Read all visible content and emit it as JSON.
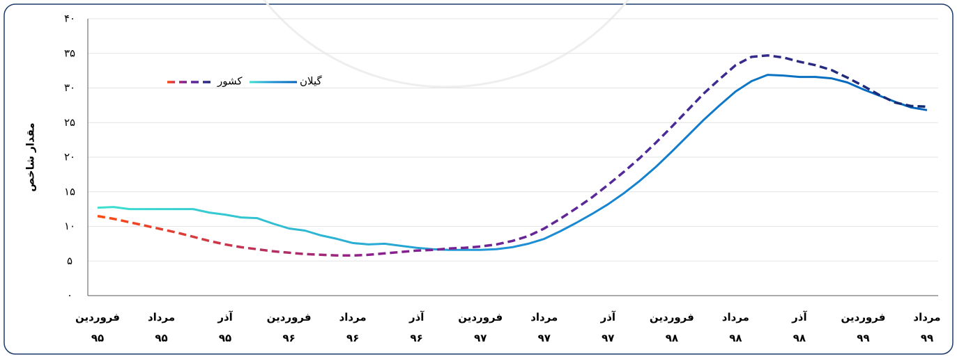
{
  "chart_data": {
    "type": "line",
    "y_label": "مقدار شاخص",
    "categories": [
      [
        "فروردین",
        "۹۵"
      ],
      null,
      null,
      null,
      [
        "مرداد",
        "۹۵"
      ],
      null,
      null,
      null,
      [
        "آذر",
        "۹۵"
      ],
      null,
      null,
      null,
      [
        "فروردین",
        "۹۶"
      ],
      null,
      null,
      null,
      [
        "مرداد",
        "۹۶"
      ],
      null,
      null,
      null,
      [
        "آذر",
        "۹۶"
      ],
      null,
      null,
      null,
      [
        "فروردین",
        "۹۷"
      ],
      null,
      null,
      null,
      [
        "مرداد",
        "۹۷"
      ],
      null,
      null,
      null,
      [
        "آذر",
        "۹۷"
      ],
      null,
      null,
      null,
      [
        "فروردین",
        "۹۸"
      ],
      null,
      null,
      null,
      [
        "مرداد",
        "۹۸"
      ],
      null,
      null,
      null,
      [
        "آذر",
        "۹۸"
      ],
      null,
      null,
      null,
      [
        "فروردین",
        "۹۹"
      ],
      null,
      null,
      null,
      [
        "مرداد",
        "۹۹"
      ]
    ],
    "series": [
      {
        "name": "گیلان",
        "color": [
          "#3ee0cf",
          "#1e90d6",
          "#0062b8"
        ],
        "dash": false,
        "values": [
          12.7,
          12.8,
          12.5,
          12.5,
          12.5,
          12.5,
          12.5,
          12.0,
          11.7,
          11.3,
          11.2,
          10.4,
          9.7,
          9.4,
          8.7,
          8.2,
          7.6,
          7.4,
          7.5,
          7.2,
          6.9,
          6.7,
          6.6,
          6.6,
          6.6,
          6.7,
          7.0,
          7.5,
          8.2,
          9.3,
          10.5,
          11.8,
          13.2,
          14.8,
          16.6,
          18.6,
          20.8,
          23.1,
          25.4,
          27.5,
          29.5,
          31.0,
          31.9,
          31.8,
          31.6,
          31.6,
          31.4,
          30.8,
          29.8,
          28.9,
          28.0,
          27.2,
          26.8
        ]
      },
      {
        "name": "کشور",
        "color": [
          "#ff4a10",
          "#8b1f8f",
          "#4b2a9a",
          "#102a70"
        ],
        "dash": true,
        "values": [
          11.5,
          11.1,
          10.6,
          10.1,
          9.6,
          9.1,
          8.5,
          7.9,
          7.4,
          7.0,
          6.7,
          6.4,
          6.2,
          6.0,
          5.9,
          5.8,
          5.8,
          5.9,
          6.1,
          6.3,
          6.5,
          6.6,
          6.8,
          6.9,
          7.1,
          7.4,
          7.9,
          8.6,
          9.7,
          11.1,
          12.6,
          14.2,
          16.0,
          17.9,
          19.9,
          22.1,
          24.4,
          26.8,
          29.2,
          31.3,
          33.3,
          34.5,
          34.7,
          34.4,
          33.8,
          33.3,
          32.6,
          31.5,
          30.3,
          29.0,
          27.9,
          27.4,
          27.3
        ]
      }
    ],
    "ylim": [
      0,
      40
    ],
    "yticks": [
      {
        "value": 0,
        "label": "۰"
      },
      {
        "value": 5,
        "label": "۵"
      },
      {
        "value": 10,
        "label": "۱۰"
      },
      {
        "value": 15,
        "label": "۱۵"
      },
      {
        "value": 20,
        "label": "۲۰"
      },
      {
        "value": 25,
        "label": "۲۵"
      },
      {
        "value": 30,
        "label": "۳۰"
      },
      {
        "value": 35,
        "label": "۳۵"
      },
      {
        "value": 40,
        "label": "۴۰"
      }
    ],
    "grid": true
  }
}
